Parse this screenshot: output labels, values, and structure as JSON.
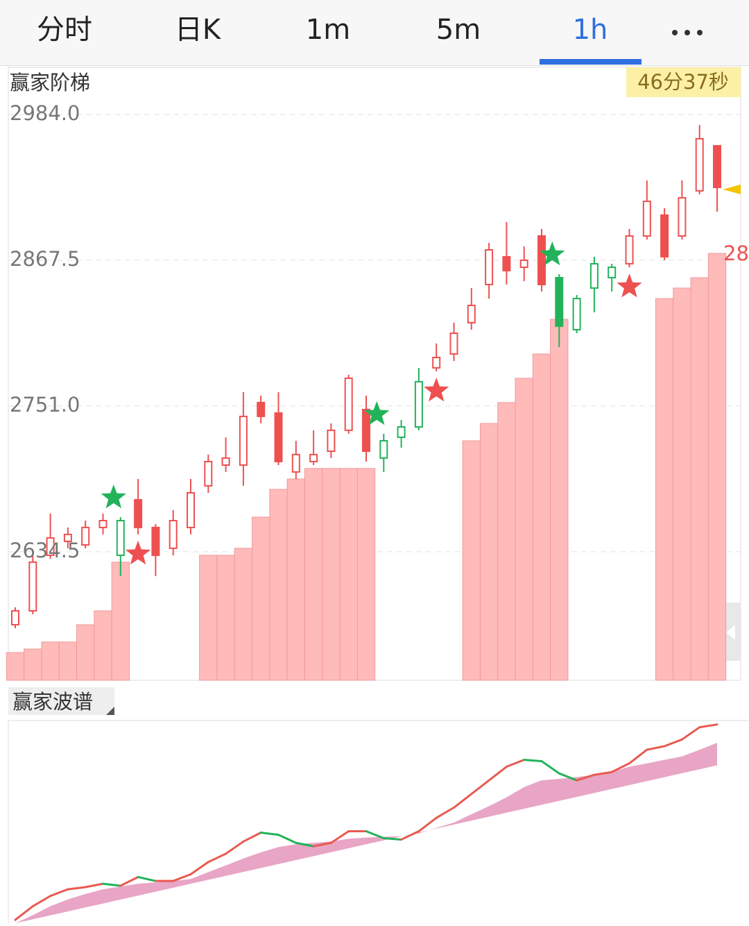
{
  "header": {
    "tabs": [
      "分时",
      "日K",
      "1m",
      "5m",
      "1h"
    ],
    "active_tab": 4
  },
  "chart_data": [
    {
      "type": "candlestick",
      "title": "赢家阶梯",
      "countdown": "46分37秒",
      "candles": [
        [
          2576.2,
          2590.1,
          2573.4,
          2587.3
        ],
        [
          2587.3,
          2631.7,
          2584.5,
          2626.2
        ],
        [
          2631.7,
          2665.0,
          2628.9,
          2645.6
        ],
        [
          2642.8,
          2653.9,
          2637.3,
          2648.4
        ],
        [
          2640.0,
          2659.4,
          2637.3,
          2653.9
        ],
        [
          2653.9,
          2665.0,
          2648.4,
          2659.4
        ],
        [
          2631.7,
          2662.2,
          2615.1,
          2659.4
        ],
        [
          2676.1,
          2692.7,
          2648.4,
          2653.9
        ],
        [
          2653.9,
          2656.7,
          2615.1,
          2631.7
        ],
        [
          2637.3,
          2667.8,
          2631.7,
          2659.4
        ],
        [
          2653.9,
          2692.7,
          2648.4,
          2681.6
        ],
        [
          2687.2,
          2712.2,
          2681.6,
          2706.6
        ],
        [
          2703.8,
          2726.0,
          2698.3,
          2709.4
        ],
        [
          2703.8,
          2762.1,
          2687.2,
          2742.7
        ],
        [
          2753.8,
          2759.3,
          2737.1,
          2742.7
        ],
        [
          2745.4,
          2762.1,
          2703.8,
          2706.6
        ],
        [
          2698.3,
          2723.2,
          2692.7,
          2712.2
        ],
        [
          2706.6,
          2731.6,
          2703.8,
          2712.2
        ],
        [
          2714.9,
          2737.1,
          2709.4,
          2731.6
        ],
        [
          2731.6,
          2776.0,
          2728.8,
          2773.2
        ],
        [
          2748.2,
          2759.3,
          2706.6,
          2714.9
        ],
        [
          2709.4,
          2728.8,
          2698.3,
          2723.2
        ],
        [
          2726.0,
          2739.9,
          2717.7,
          2734.3
        ],
        [
          2734.3,
          2781.5,
          2731.6,
          2770.4
        ],
        [
          2781.5,
          2801.0,
          2778.7,
          2789.8
        ],
        [
          2792.6,
          2817.6,
          2787.0,
          2809.2
        ],
        [
          2817.6,
          2845.3,
          2812.0,
          2831.4
        ],
        [
          2848.1,
          2881.4,
          2836.9,
          2875.8
        ],
        [
          2870.3,
          2898.0,
          2848.1,
          2859.2
        ],
        [
          2861.9,
          2878.6,
          2850.8,
          2867.5
        ],
        [
          2886.9,
          2892.5,
          2842.5,
          2848.1
        ],
        [
          2853.6,
          2856.4,
          2798.1,
          2814.8
        ],
        [
          2812.0,
          2839.7,
          2809.2,
          2836.9
        ],
        [
          2845.3,
          2870.3,
          2825.9,
          2864.7
        ],
        [
          2853.6,
          2864.7,
          2842.5,
          2861.9
        ],
        [
          2864.7,
          2892.5,
          2861.9,
          2886.9
        ],
        [
          2886.9,
          2931.3,
          2884.1,
          2914.6
        ],
        [
          2903.6,
          2909.1,
          2867.5,
          2870.3
        ],
        [
          2886.9,
          2931.3,
          2884.1,
          2917.4
        ],
        [
          2923.0,
          2975.7,
          2920.2,
          2964.6
        ],
        [
          2959.0,
          2959.0,
          2906.3,
          2925.7
        ]
      ],
      "candle_colors": [
        "#ee5050",
        "#ee5050",
        "#ee5050",
        "#ee5050",
        "#ee5050",
        "#ee5050",
        "#22b35a",
        "#ee5050",
        "#ee5050",
        "#ee5050",
        "#ee5050",
        "#ee5050",
        "#ee5050",
        "#ee5050",
        "#ee5050",
        "#ee5050",
        "#ee5050",
        "#ee5050",
        "#ee5050",
        "#ee5050",
        "#ee5050",
        "#22b35a",
        "#22b35a",
        "#22b35a",
        "#ee5050",
        "#ee5050",
        "#ee5050",
        "#ee5050",
        "#ee5050",
        "#ee5050",
        "#ee5050",
        "#22b35a",
        "#22b35a",
        "#22b35a",
        "#22b35a",
        "#ee5050",
        "#ee5050",
        "#ee5050",
        "#ee5050",
        "#ee5050",
        "#ee5050"
      ],
      "ladder": [
        2554.0,
        2556.8,
        2562.4,
        2562.4,
        2576.2,
        2587.3,
        2626.2,
        null,
        null,
        null,
        null,
        2631.7,
        2631.7,
        2637.3,
        2662.2,
        2684.4,
        2692.7,
        2701.1,
        2701.1,
        2701.1,
        2701.1,
        null,
        null,
        null,
        null,
        null,
        2723.2,
        2737.1,
        2753.8,
        2773.2,
        2792.6,
        2820.3,
        null,
        null,
        null,
        null,
        null,
        2836.9,
        2845.3,
        2853.6,
        2873.0
      ],
      "ladder_color": "#ffbaba",
      "buy_signals": [
        6,
        21,
        31
      ],
      "sell_signals": [
        7,
        24,
        35
      ],
      "buy_color": "#22b35a",
      "sell_color": "#ee5050",
      "current_price": 2924.1,
      "current_price_color": "#f5c400",
      "price_label": "28",
      "ylim": [
        2531.8,
        3021.7
      ],
      "yticks": [
        {
          "value": 2984.0,
          "label": "2984.0"
        },
        {
          "value": 2867.5,
          "label": "2867.5"
        },
        {
          "value": 2751.0,
          "label": "2751.0"
        },
        {
          "value": 2634.5,
          "label": "2634.5"
        }
      ],
      "grid": true
    },
    {
      "type": "line",
      "title": "赢家波谱",
      "values": [
        1.7,
        8.6,
        13.8,
        17.2,
        18.3,
        20.0,
        19.0,
        23.4,
        21.4,
        21.4,
        24.8,
        31.0,
        35.2,
        41.4,
        45.9,
        44.8,
        40.7,
        39.0,
        40.7,
        46.6,
        46.6,
        43.1,
        42.4,
        46.6,
        53.4,
        58.6,
        65.5,
        72.4,
        79.3,
        82.8,
        82.1,
        75.9,
        72.4,
        75.2,
        76.6,
        81.0,
        87.9,
        89.7,
        93.1,
        99.3,
        100.7
      ],
      "band_high": [
        0,
        4.1,
        8.6,
        12.1,
        14.8,
        17.2,
        18.6,
        20.0,
        20.7,
        21.4,
        22.4,
        25.9,
        29.3,
        32.8,
        35.9,
        38.6,
        40.0,
        40.7,
        41.4,
        42.8,
        43.4,
        43.8,
        44.1,
        45.5,
        48.3,
        51.0,
        55.2,
        59.3,
        63.8,
        69.0,
        72.4,
        73.1,
        74.1,
        75.2,
        76.6,
        79.3,
        81.0,
        82.8,
        84.5,
        87.9,
        91.4
      ],
      "band_low": [
        0,
        2,
        4,
        6,
        8,
        10,
        12,
        14,
        16,
        18,
        20,
        22,
        24,
        26,
        28,
        30,
        32,
        34,
        36,
        38,
        40,
        42,
        44,
        46,
        48,
        50,
        52,
        54,
        56,
        58,
        60,
        62,
        64,
        66,
        68,
        70,
        72,
        74,
        76,
        78,
        80
      ],
      "ylim": [
        0,
        102
      ],
      "up_color": "#e85a50",
      "down_color": "#22b35a",
      "band_color": "#e8a5c5"
    }
  ]
}
